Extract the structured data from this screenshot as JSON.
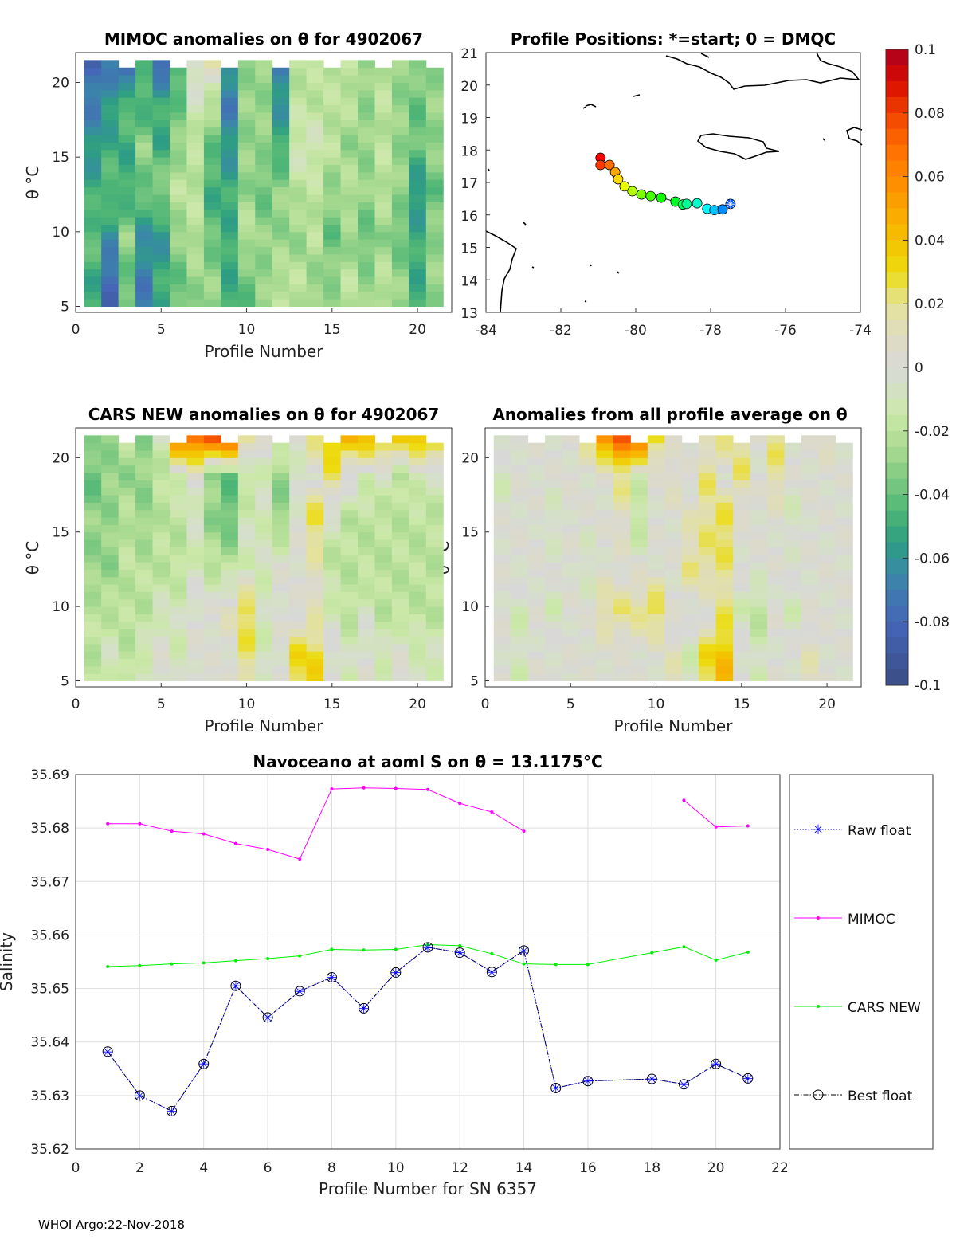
{
  "footer": "WHOI Argo:22-Nov-2018",
  "colors": {
    "mimoc": "#ff00ff",
    "cars": "#00ee00",
    "raw": "#0000ff",
    "best": "#000000"
  },
  "chart_data": [
    {
      "id": "mimoc",
      "type": "heatmap",
      "title": "MIMOC anomalies on θ  for 4902067",
      "xlabel": "Profile Number",
      "ylabel": "θ °C",
      "xlim": [
        0,
        22
      ],
      "ylim": [
        4.6,
        22
      ],
      "xticks": [
        "0",
        "5",
        "10",
        "15",
        "20"
      ],
      "yticks": [
        "5",
        "10",
        "15",
        "20"
      ],
      "theta_bands": [
        6.5,
        9.5,
        12.5,
        15.5,
        18.5,
        21
      ],
      "values": [
        [
          -0.05,
          -0.08,
          -0.04,
          -0.07,
          -0.05,
          -0.04,
          -0.03,
          -0.03,
          -0.05,
          -0.04,
          -0.03,
          -0.02,
          -0.02,
          -0.03,
          -0.03,
          -0.02,
          -0.03,
          -0.02,
          -0.03,
          -0.05,
          -0.03
        ],
        [
          -0.04,
          -0.06,
          -0.03,
          -0.06,
          -0.06,
          -0.03,
          -0.02,
          -0.04,
          -0.05,
          -0.02,
          -0.03,
          -0.03,
          -0.03,
          -0.02,
          -0.04,
          -0.03,
          -0.04,
          -0.03,
          -0.04,
          -0.05,
          -0.03
        ],
        [
          -0.05,
          -0.04,
          -0.05,
          -0.04,
          -0.03,
          -0.02,
          -0.02,
          -0.05,
          -0.05,
          -0.03,
          -0.04,
          -0.03,
          -0.02,
          -0.02,
          -0.03,
          -0.02,
          -0.03,
          -0.02,
          -0.03,
          -0.06,
          -0.04
        ],
        [
          -0.06,
          -0.05,
          -0.05,
          -0.03,
          -0.05,
          -0.03,
          -0.02,
          -0.04,
          -0.06,
          -0.03,
          -0.03,
          -0.05,
          -0.01,
          -0.01,
          -0.02,
          -0.03,
          -0.03,
          -0.02,
          -0.03,
          -0.04,
          -0.03
        ],
        [
          -0.07,
          -0.06,
          -0.04,
          -0.05,
          -0.05,
          -0.04,
          -0.01,
          -0.02,
          -0.07,
          -0.03,
          -0.03,
          -0.06,
          -0.02,
          -0.02,
          -0.02,
          -0.02,
          -0.03,
          -0.02,
          -0.03,
          -0.04,
          -0.03
        ],
        [
          -0.08,
          -0.07,
          -0.09,
          -0.04,
          -0.08,
          -0.05,
          0.0,
          0.01,
          -0.06,
          -0.03,
          -0.03,
          -0.07,
          -0.02,
          -0.02,
          -0.02,
          -0.02,
          -0.03,
          -0.02,
          -0.03,
          -0.03,
          -0.03
        ]
      ]
    },
    {
      "id": "positions",
      "type": "scatter",
      "title": "Profile Positions: *=start; 0 = DMQC",
      "xlim": [
        -84,
        -74
      ],
      "ylim": [
        13,
        21
      ],
      "xticks": [
        "-84",
        "-82",
        "-80",
        "-78",
        "-76",
        "-74"
      ],
      "yticks": [
        "13",
        "14",
        "15",
        "16",
        "17",
        "18",
        "19",
        "20",
        "21"
      ],
      "lon": [
        -77.47,
        -77.68,
        -77.9,
        -78.09,
        -78.36,
        -78.64,
        -78.74,
        -78.94,
        -79.32,
        -79.6,
        -79.85,
        -80.09,
        -80.3,
        -80.47,
        -80.55,
        -80.7,
        -80.94,
        -80.94
      ],
      "lat": [
        16.34,
        16.17,
        16.15,
        16.19,
        16.36,
        16.34,
        16.32,
        16.41,
        16.53,
        16.58,
        16.63,
        16.73,
        16.88,
        17.1,
        17.32,
        17.54,
        17.54,
        17.76
      ]
    },
    {
      "id": "colorbar",
      "type": "colorbar",
      "range": [
        -0.1,
        0.1
      ],
      "ticks": [
        "0.1",
        "0.08",
        "0.06",
        "0.04",
        "0.02",
        "0",
        "-0.02",
        "-0.04",
        "-0.06",
        "-0.08",
        "-0.1"
      ]
    },
    {
      "id": "cars",
      "type": "heatmap",
      "title": "CARS NEW anomalies on θ for 4902067",
      "xlabel": "Profile Number",
      "ylabel": "θ °C",
      "xlim": [
        0,
        22
      ],
      "ylim": [
        4.6,
        22
      ],
      "xticks": [
        "0",
        "5",
        "10",
        "15",
        "20"
      ],
      "yticks": [
        "5",
        "10",
        "15",
        "20"
      ],
      "theta_bands": [
        6.5,
        9.5,
        12.5,
        15.5,
        18.5,
        21
      ],
      "values": [
        [
          -0.02,
          -0.01,
          -0.02,
          -0.01,
          0.0,
          -0.01,
          0.0,
          0.0,
          0.0,
          0.02,
          -0.01,
          0.0,
          0.03,
          0.03,
          0.0,
          -0.01,
          0.0,
          -0.01,
          0.0,
          -0.01,
          -0.01
        ],
        [
          -0.02,
          -0.02,
          -0.02,
          -0.02,
          -0.01,
          -0.01,
          0.0,
          0.0,
          0.01,
          0.03,
          -0.01,
          0.0,
          0.0,
          0.01,
          -0.01,
          -0.02,
          -0.01,
          -0.02,
          -0.02,
          -0.02,
          -0.02
        ],
        [
          -0.03,
          -0.03,
          -0.02,
          -0.02,
          -0.02,
          -0.02,
          -0.01,
          -0.02,
          -0.02,
          -0.01,
          -0.01,
          0.0,
          0.0,
          0.01,
          -0.02,
          -0.02,
          -0.02,
          -0.02,
          -0.02,
          -0.02,
          -0.02
        ],
        [
          -0.03,
          -0.03,
          -0.02,
          -0.03,
          -0.02,
          -0.02,
          -0.01,
          -0.03,
          -0.04,
          -0.01,
          -0.01,
          -0.03,
          0.0,
          0.03,
          -0.01,
          -0.02,
          -0.02,
          -0.02,
          -0.02,
          -0.02,
          -0.02
        ],
        [
          -0.04,
          -0.03,
          -0.03,
          -0.03,
          -0.02,
          -0.01,
          0.0,
          -0.03,
          -0.04,
          -0.02,
          -0.01,
          -0.03,
          -0.01,
          0.0,
          0.02,
          0.0,
          -0.01,
          -0.01,
          -0.02,
          -0.01,
          -0.01
        ],
        [
          -0.03,
          -0.03,
          -0.02,
          -0.03,
          -0.01,
          0.06,
          0.07,
          0.07,
          0.08,
          0.02,
          0.0,
          -0.01,
          0.0,
          0.02,
          0.04,
          0.04,
          0.04,
          0.04,
          0.03,
          0.04,
          0.04
        ]
      ]
    },
    {
      "id": "average",
      "type": "heatmap",
      "title": "Anomalies from all profile average on θ",
      "xlabel": "Profile Number",
      "ylabel": "θ °C",
      "xlim": [
        0,
        22
      ],
      "ylim": [
        4.6,
        22
      ],
      "xticks": [
        "0",
        "5",
        "10",
        "15",
        "20"
      ],
      "yticks": [
        "5",
        "10",
        "15",
        "20"
      ],
      "theta_bands": [
        6.5,
        9.5,
        12.5,
        15.5,
        18.5,
        21
      ],
      "values": [
        [
          0.0,
          -0.01,
          0.0,
          0.0,
          0.0,
          0.0,
          0.0,
          0.0,
          0.0,
          0.0,
          0.01,
          -0.01,
          0.03,
          0.04,
          0.0,
          -0.01,
          0.0,
          0.0,
          0.01,
          0.0,
          0.0
        ],
        [
          0.0,
          -0.01,
          0.0,
          -0.01,
          0.0,
          0.0,
          0.02,
          0.02,
          0.02,
          0.03,
          0.0,
          0.0,
          0.0,
          0.02,
          -0.01,
          -0.02,
          0.0,
          -0.01,
          0.0,
          0.0,
          0.0
        ],
        [
          0.0,
          0.0,
          0.0,
          0.0,
          0.0,
          -0.01,
          0.0,
          0.0,
          0.0,
          0.0,
          0.0,
          0.02,
          0.02,
          0.02,
          0.0,
          0.0,
          0.0,
          0.0,
          0.0,
          0.0,
          0.0
        ],
        [
          0.0,
          0.0,
          0.0,
          -0.01,
          0.0,
          0.0,
          0.0,
          0.01,
          -0.02,
          0.0,
          0.0,
          0.01,
          0.02,
          0.03,
          0.0,
          0.0,
          0.0,
          -0.01,
          0.0,
          0.0,
          0.0
        ],
        [
          -0.01,
          0.0,
          0.0,
          0.0,
          0.0,
          0.0,
          0.0,
          0.02,
          -0.01,
          0.0,
          0.01,
          0.0,
          0.02,
          0.0,
          0.02,
          0.0,
          0.02,
          0.0,
          0.0,
          0.0,
          0.0
        ],
        [
          0.0,
          0.0,
          0.0,
          0.0,
          0.0,
          0.02,
          0.06,
          0.07,
          0.07,
          0.03,
          0.0,
          0.0,
          0.01,
          0.02,
          0.02,
          0.0,
          0.02,
          0.0,
          0.0,
          0.01,
          0.0
        ]
      ]
    },
    {
      "id": "salinity",
      "type": "line",
      "title": "Navoceano at aoml S on θ = 13.1175°C",
      "xlabel": "Profile Number for SN 6357",
      "ylabel": "Salinity",
      "xlim": [
        0,
        22
      ],
      "ylim": [
        35.62,
        35.69
      ],
      "grid": true,
      "legend_placement": "right-outside",
      "xticks": [
        "0",
        "2",
        "4",
        "6",
        "8",
        "10",
        "12",
        "14",
        "16",
        "18",
        "20",
        "22"
      ],
      "yticks": [
        "35.62",
        "35.63",
        "35.64",
        "35.65",
        "35.66",
        "35.67",
        "35.68",
        "35.69"
      ],
      "x": [
        1,
        2,
        3,
        4,
        5,
        6,
        7,
        8,
        9,
        10,
        11,
        12,
        13,
        14,
        15,
        16,
        17,
        18,
        19,
        20,
        21
      ],
      "series": [
        {
          "name": "Raw float",
          "values": [
            35.6382,
            35.63,
            35.6271,
            35.6359,
            35.6505,
            35.6446,
            35.6495,
            35.6521,
            35.6463,
            35.653,
            35.6577,
            35.6567,
            35.6531,
            35.6571,
            35.6314,
            35.6327,
            null,
            35.6331,
            35.6321,
            35.6359,
            35.6332
          ]
        },
        {
          "name": "MIMOC",
          "values": [
            35.6808,
            35.6808,
            35.6794,
            35.6789,
            35.6771,
            35.676,
            35.6742,
            35.6873,
            35.6875,
            35.6874,
            35.6872,
            35.6846,
            35.683,
            35.6794,
            null,
            null,
            null,
            null,
            35.6852,
            35.6802,
            35.6804
          ]
        },
        {
          "name": "CARS NEW",
          "values": [
            35.6541,
            35.6543,
            35.6546,
            35.6548,
            35.6552,
            35.6556,
            35.6561,
            35.6573,
            35.6572,
            35.6573,
            35.6582,
            35.658,
            35.6565,
            35.6546,
            35.6545,
            35.6545,
            null,
            35.6567,
            35.6578,
            35.6553,
            35.6568
          ]
        },
        {
          "name": "Best float",
          "values": [
            35.6382,
            35.63,
            35.6271,
            35.6359,
            35.6505,
            35.6446,
            35.6495,
            35.6521,
            35.6463,
            35.653,
            35.6577,
            35.6567,
            35.6531,
            35.6571,
            35.6314,
            35.6327,
            null,
            35.6331,
            35.6321,
            35.6359,
            35.6332
          ]
        }
      ]
    }
  ]
}
